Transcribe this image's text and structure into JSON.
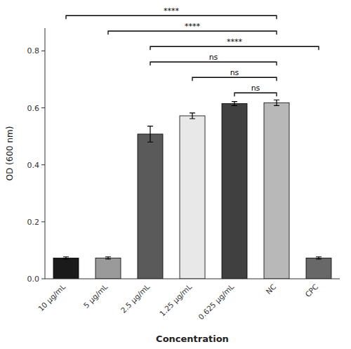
{
  "chart_data": {
    "type": "bar",
    "categories": [
      "10 μg/mL",
      "5 μg/mL",
      "2.5 μg/mL",
      "1.25 μg/mL",
      "0.625 μg/mL",
      "NC",
      "CPC"
    ],
    "values": [
      0.073,
      0.073,
      0.508,
      0.572,
      0.615,
      0.618,
      0.073
    ],
    "errors": [
      0.004,
      0.004,
      0.028,
      0.01,
      0.007,
      0.01,
      0.004
    ],
    "colors": [
      "#1a1a1a",
      "#9a9a9a",
      "#5a5a5a",
      "#e8e8e8",
      "#404040",
      "#b8b8b8",
      "#686868"
    ],
    "y_label": "OD (600 nm)",
    "x_label": "Concentration",
    "ylim": [
      0.0,
      0.88
    ],
    "yticks": [
      {
        "value": 0.0,
        "label": "0.0"
      },
      0.2,
      0.4,
      0.6,
      0.8
    ],
    "grid": false,
    "annotations": [
      {
        "text": "****",
        "between": [
          "10 μg/mL",
          "NC"
        ]
      },
      {
        "text": "****",
        "between": [
          "5 μg/mL",
          "NC"
        ]
      },
      {
        "text": "****",
        "between": [
          "2.5 μg/mL",
          "CPC"
        ]
      },
      {
        "text": "ns",
        "between": [
          "2.5 μg/mL",
          "NC"
        ]
      },
      {
        "text": "ns",
        "between": [
          "1.25 μg/mL",
          "NC"
        ]
      },
      {
        "text": "ns",
        "between": [
          "0.625 μg/mL",
          "NC"
        ]
      }
    ]
  }
}
